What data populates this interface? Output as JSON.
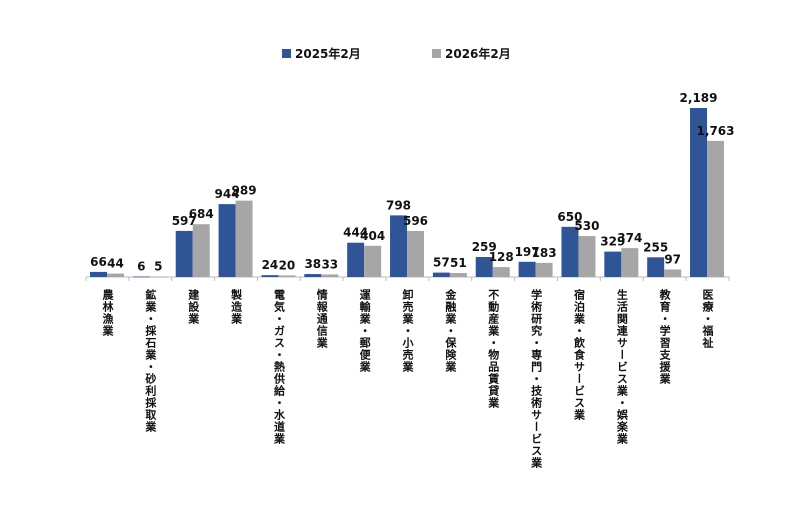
{
  "chart_data": {
    "type": "bar",
    "title": "",
    "xlabel": "",
    "ylabel": "",
    "ylim": [
      0,
      2189
    ],
    "grid": false,
    "legend_position": "top",
    "categories": [
      "農林漁業",
      "鉱業・採石業・砂利採取業",
      "建設業",
      "製造業",
      "電気・ガス・熱供給・水道業",
      "情報通信業",
      "運輸業・郵便業",
      "卸売業・小売業",
      "金融業・保険業",
      "不動産業・物品賃貸業",
      "学術研究・専門・技術サービス業",
      "宿泊業・飲食サービス業",
      "生活関連サービス業・娯楽業",
      "教育・学習支援業",
      "医療・福祉"
    ],
    "series": [
      {
        "name": "2025年2月",
        "color": "#2F5597",
        "values": [
          66,
          6,
          597,
          944,
          24,
          38,
          444,
          798,
          57,
          259,
          197,
          650,
          329,
          255,
          2189
        ],
        "labels": [
          "66",
          "6",
          "597",
          "944",
          "24",
          "38",
          "444",
          "798",
          "57",
          "259",
          "197",
          "650",
          "329",
          "255",
          "2,189"
        ]
      },
      {
        "name": "2026年2月",
        "color": "#A6A6A6",
        "values": [
          44,
          5,
          684,
          989,
          20,
          33,
          404,
          596,
          51,
          128,
          183,
          530,
          374,
          97,
          1763
        ],
        "labels": [
          "44",
          "5",
          "684",
          "989",
          "20",
          "33",
          "404",
          "596",
          "51",
          "128",
          "183",
          "530",
          "374",
          "97",
          "1,763"
        ]
      }
    ]
  }
}
